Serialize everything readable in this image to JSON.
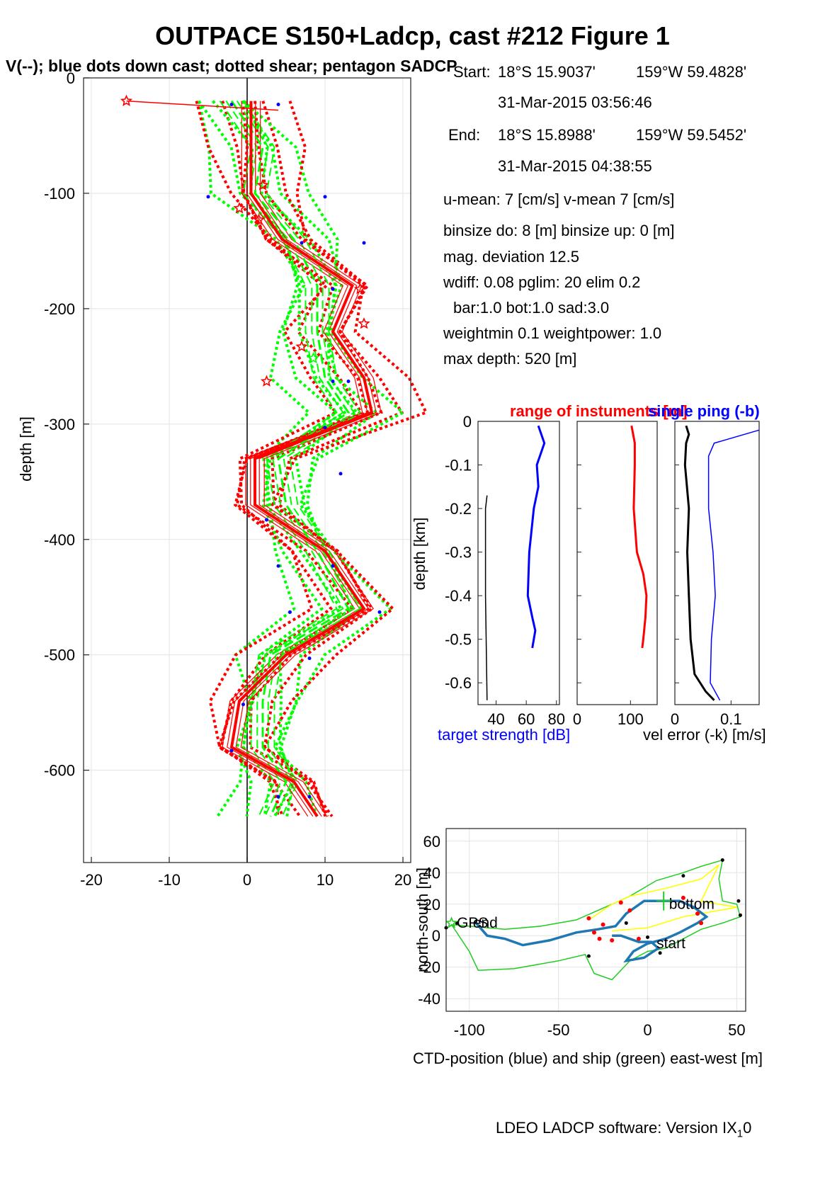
{
  "header": {
    "title": "OUTPACE S150+Ladcp, cast #212  Figure 1",
    "subtitle": "V(--); blue dots down cast; dotted shear; pentagon SADCP"
  },
  "info": {
    "start_label": "Start:",
    "start_lat": "18°S 15.9037'",
    "start_lon": "159°W 59.4828'",
    "start_time": "31-Mar-2015 03:56:46",
    "end_label": "End:",
    "end_lat": "18°S 15.8988'",
    "end_lon": "159°W 59.5452'",
    "end_time": "31-Mar-2015 04:38:55",
    "line1": "u-mean:   7 [cm/s]    v-mean   7 [cm/s]",
    "line2": "binsize do: 8 [m]  binsize up:  0 [m]",
    "line3": "mag. deviation 12.5",
    "line4": "wdiff: 0.08  pglim: 20  elim 0.2",
    "line5": "bar:1.0 bot:1.0 sad:3.0",
    "line6": "weightmin 0.1  weightpower: 1.0",
    "line7": "max depth: 520 [m]"
  },
  "footer": {
    "text": "LDEO LADCP software: Version IX",
    "sub": "1",
    "tail": "0"
  },
  "colors": {
    "green": "#00ff00",
    "red": "#ff0000",
    "blue": "#0000ff",
    "ctd": "#1f77b4",
    "ship": "#22cc22",
    "yellow": "#ffff00"
  },
  "chart_data": [
    {
      "type": "line",
      "name": "velocity profile",
      "ylabel": "depth [m]",
      "xlabel": "",
      "xlim": [
        -21,
        21
      ],
      "ylim": [
        -680,
        0
      ],
      "xticks": [
        "-20",
        "-10",
        "0",
        "10",
        "20"
      ],
      "yticks": [
        "0",
        "-100",
        "-200",
        "-300",
        "-400",
        "-500",
        "-600"
      ],
      "depth": [
        -20,
        -60,
        -100,
        -140,
        -180,
        -220,
        -260,
        -290,
        -330,
        -370,
        -410,
        -460,
        -500,
        -540,
        -580,
        -610,
        -640
      ],
      "u_mean": [
        0.5,
        0.5,
        0.5,
        4.5,
        13.5,
        11,
        15,
        16,
        1,
        1,
        10,
        15,
        5,
        -1,
        -2,
        6,
        9
      ],
      "v_mean": [
        -2,
        2,
        1,
        6,
        9,
        9,
        10,
        13,
        4,
        5,
        9,
        13,
        3,
        2,
        2,
        5,
        3
      ],
      "blue_dots": [
        [
          -2,
          -23
        ],
        [
          4,
          -23
        ],
        [
          -5,
          -103
        ],
        [
          10,
          -103
        ],
        [
          7,
          -143
        ],
        [
          15,
          -143
        ],
        [
          11,
          -183
        ],
        [
          11,
          -263
        ],
        [
          13,
          -263
        ],
        [
          10,
          -303
        ],
        [
          12,
          -343
        ],
        [
          2.5,
          -383
        ],
        [
          4,
          -423
        ],
        [
          11,
          -423
        ],
        [
          5.5,
          -463
        ],
        [
          17,
          -463
        ],
        [
          8,
          -503
        ],
        [
          -0.5,
          -543
        ],
        [
          -2,
          -583
        ],
        [
          4,
          -623
        ],
        [
          8,
          -623
        ]
      ],
      "sadcp_stars": [
        [
          -15.5,
          -20
        ],
        [
          2,
          -93
        ],
        [
          -1,
          -113
        ],
        [
          1.5,
          -123
        ],
        [
          14.5,
          -183
        ],
        [
          15,
          -213
        ],
        [
          7,
          -233
        ],
        [
          2.5,
          -263
        ],
        [
          8.5,
          -243
        ]
      ]
    },
    {
      "type": "line",
      "title_left": "range of instuments [m]",
      "title_right": "single ping (-b)",
      "ylabel": "depth [km]",
      "xlabel_left": "target strength [dB]",
      "xlabel_right": "vel error (-k) [m/s]",
      "ylim": [
        -0.65,
        0
      ],
      "yticks": [
        "0",
        "-0.1",
        "-0.2",
        "-0.3",
        "-0.4",
        "-0.5",
        "-0.6"
      ],
      "panels": [
        {
          "xlim": [
            28,
            82
          ],
          "xticks": [
            "40",
            "60",
            "80"
          ],
          "series": [
            {
              "color": "#0000ff",
              "width": 3,
              "points": [
                [
                  68,
                  -0.01
                ],
                [
                  72,
                  -0.05
                ],
                [
                  67,
                  -0.1
                ],
                [
                  68,
                  -0.15
                ],
                [
                  65,
                  -0.2
                ],
                [
                  62,
                  -0.3
                ],
                [
                  61,
                  -0.4
                ],
                [
                  64,
                  -0.45
                ],
                [
                  66,
                  -0.48
                ],
                [
                  64,
                  -0.52
                ]
              ]
            },
            {
              "color": "#000000",
              "width": 1.5,
              "points": [
                [
                  34,
                  -0.17
                ],
                [
                  33,
                  -0.2
                ],
                [
                  33,
                  -0.4
                ],
                [
                  34,
                  -0.64
                ]
              ]
            }
          ]
        },
        {
          "xlim": [
            0,
            150
          ],
          "xticks": [
            "0",
            "100"
          ],
          "series": [
            {
              "color": "#ff0000",
              "width": 3,
              "points": [
                [
                  102,
                  -0.01
                ],
                [
                  108,
                  -0.05
                ],
                [
                  108,
                  -0.1
                ],
                [
                  106,
                  -0.2
                ],
                [
                  112,
                  -0.3
                ],
                [
                  124,
                  -0.35
                ],
                [
                  130,
                  -0.4
                ],
                [
                  128,
                  -0.45
                ],
                [
                  124,
                  -0.5
                ],
                [
                  122,
                  -0.52
                ]
              ]
            }
          ]
        },
        {
          "xlim": [
            0,
            0.15
          ],
          "xticks": [
            "0",
            "0.1"
          ],
          "series": [
            {
              "color": "#000000",
              "width": 3,
              "points": [
                [
                  0.02,
                  -0.01
                ],
                [
                  0.025,
                  -0.03
                ],
                [
                  0.02,
                  -0.05
                ],
                [
                  0.018,
                  -0.1
                ],
                [
                  0.025,
                  -0.2
                ],
                [
                  0.022,
                  -0.3
                ],
                [
                  0.025,
                  -0.4
                ],
                [
                  0.028,
                  -0.5
                ],
                [
                  0.035,
                  -0.58
                ],
                [
                  0.055,
                  -0.62
                ],
                [
                  0.07,
                  -0.64
                ]
              ]
            },
            {
              "color": "#0000ff",
              "width": 1.5,
              "points": [
                [
                  0.15,
                  -0.02
                ],
                [
                  0.07,
                  -0.05
                ],
                [
                  0.06,
                  -0.08
                ],
                [
                  0.06,
                  -0.2
                ],
                [
                  0.068,
                  -0.3
                ],
                [
                  0.072,
                  -0.4
                ],
                [
                  0.065,
                  -0.5
                ],
                [
                  0.063,
                  -0.6
                ],
                [
                  0.08,
                  -0.64
                ]
              ]
            }
          ]
        }
      ]
    },
    {
      "type": "line",
      "xlabel": "CTD-position (blue) and ship (green) east-west [m]",
      "ylabel": "north-south [m]",
      "xlim": [
        -113,
        55
      ],
      "ylim": [
        -48,
        68
      ],
      "xticks": [
        "-100",
        "-50",
        "0",
        "50"
      ],
      "yticks": [
        "60",
        "40",
        "20",
        "0",
        "-20",
        "-40"
      ],
      "labels": {
        "gps": "GPS",
        "end": "end",
        "bottom": "bottom",
        "start": "start"
      },
      "ctd_track": [
        [
          -97,
          9
        ],
        [
          -90,
          0
        ],
        [
          -80,
          -2
        ],
        [
          -70,
          -6
        ],
        [
          -55,
          -3
        ],
        [
          -40,
          2
        ],
        [
          -28,
          4
        ],
        [
          -18,
          6
        ],
        [
          -12,
          14
        ],
        [
          -2,
          22
        ],
        [
          8,
          22
        ],
        [
          18,
          22
        ],
        [
          26,
          18
        ],
        [
          33,
          12
        ],
        [
          28,
          8
        ],
        [
          18,
          2
        ],
        [
          10,
          -2
        ],
        [
          0,
          -5
        ],
        [
          -8,
          -10
        ],
        [
          -12,
          -16
        ],
        [
          -2,
          -14
        ],
        [
          6,
          -8
        ],
        [
          2,
          -4
        ],
        [
          -5,
          -4
        ],
        [
          -15,
          0
        ],
        [
          -20,
          0
        ]
      ],
      "ship_track": [
        [
          -112,
          5
        ],
        [
          -110,
          7
        ],
        [
          -100,
          -10
        ],
        [
          -95,
          -22
        ],
        [
          -75,
          -21
        ],
        [
          -50,
          -16
        ],
        [
          -35,
          -12
        ],
        [
          -30,
          -24
        ],
        [
          -20,
          -28
        ],
        [
          -10,
          -16
        ],
        [
          0,
          -10
        ],
        [
          10,
          -8
        ],
        [
          20,
          -2
        ],
        [
          30,
          4
        ],
        [
          42,
          8
        ],
        [
          52,
          12
        ],
        [
          50,
          20
        ],
        [
          42,
          22
        ],
        [
          40,
          36
        ],
        [
          42,
          48
        ],
        [
          30,
          44
        ],
        [
          20,
          40
        ],
        [
          5,
          35
        ],
        [
          -10,
          25
        ],
        [
          -20,
          20
        ],
        [
          -30,
          15
        ],
        [
          -40,
          10
        ],
        [
          -60,
          6
        ],
        [
          -80,
          4
        ],
        [
          -100,
          6
        ],
        [
          -110,
          7
        ]
      ],
      "ship_fixes": [
        [
          -113,
          5
        ],
        [
          -107,
          8
        ],
        [
          -33,
          -13
        ],
        [
          7,
          -11
        ],
        [
          42,
          48
        ],
        [
          20,
          38
        ],
        [
          52,
          13
        ],
        [
          51,
          22
        ],
        [
          0,
          -1
        ],
        [
          -12,
          8
        ]
      ],
      "ctd_fixes": [
        [
          -33,
          11
        ],
        [
          -30,
          2
        ],
        [
          -27,
          -2
        ],
        [
          -25,
          7
        ],
        [
          -20,
          -3
        ],
        [
          -15,
          21
        ],
        [
          -10,
          16
        ],
        [
          -5,
          -2
        ],
        [
          20,
          24
        ],
        [
          28,
          14
        ],
        [
          30,
          8
        ]
      ],
      "yellow_line": [
        [
          -33,
          10
        ],
        [
          -20,
          20
        ],
        [
          -10,
          25
        ],
        [
          10,
          30
        ],
        [
          30,
          36
        ],
        [
          40,
          45
        ],
        [
          30,
          22
        ],
        [
          50,
          18
        ],
        [
          20,
          12
        ],
        [
          0,
          5
        ],
        [
          -20,
          3
        ]
      ]
    }
  ]
}
